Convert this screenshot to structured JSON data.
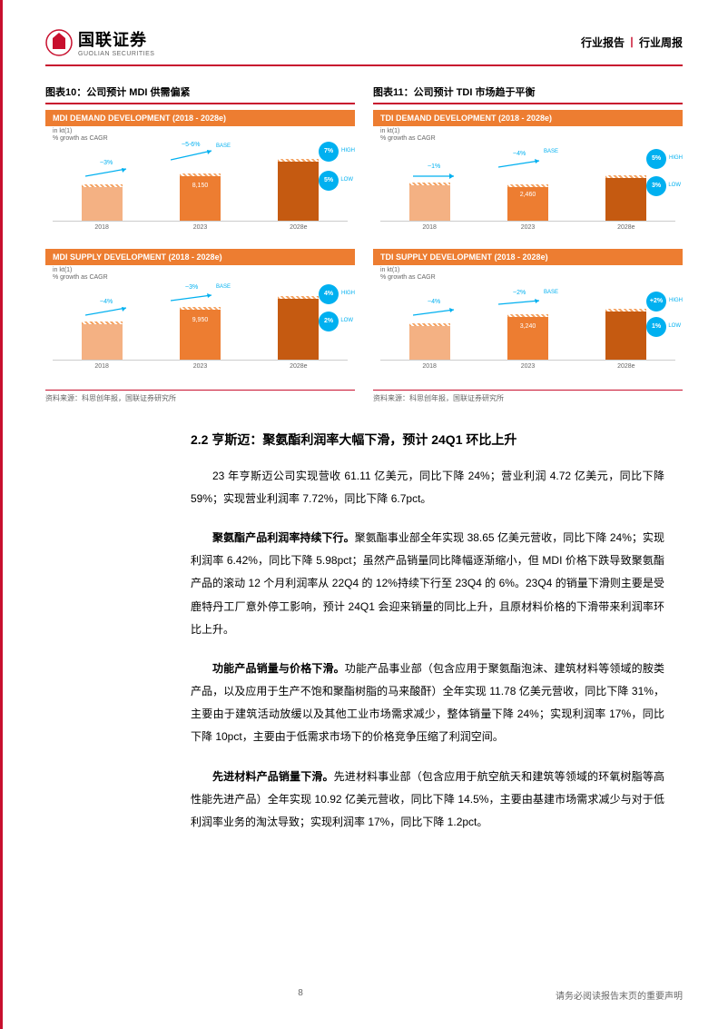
{
  "header": {
    "logo_cn": "国联证券",
    "logo_en": "GUOLIAN SECURITIES",
    "right_left": "行业报告",
    "right_right": "行业周报"
  },
  "fig10": {
    "title": "图表10：公司预计 MDI 供需偏紧",
    "demand": {
      "header": "MDI DEMAND DEVELOPMENT (2018 - 2028e)",
      "sub1": "in kt(1)",
      "sub2": "% growth as CAGR",
      "years": [
        "2018",
        "2023",
        "2028e"
      ],
      "heights": [
        40,
        52,
        68
      ],
      "colors": [
        "#f4b183",
        "#ed7d31",
        "#c55a11"
      ],
      "mid_value": "8,150",
      "g1": "~3%",
      "g2": "~5-6%",
      "base": "BASE",
      "high_badge": "7%",
      "high_label": "HIGH",
      "low_badge": "5%",
      "low_label": "LOW",
      "badge_color": "#00b0f0"
    },
    "supply": {
      "header": "MDI SUPPLY DEVELOPMENT (2018 - 2028e)",
      "sub1": "in kt(1)",
      "sub2": "% growth as CAGR",
      "years": [
        "2018",
        "2023",
        "2028e"
      ],
      "heights": [
        42,
        58,
        70
      ],
      "colors": [
        "#f4b183",
        "#ed7d31",
        "#c55a11"
      ],
      "mid_value": "9,950",
      "g1": "~4%",
      "g2": "~3%",
      "base": "BASE",
      "high_badge": "4%",
      "high_label": "HIGH",
      "low_badge": "2%",
      "low_label": "LOW",
      "badge_color": "#00b0f0"
    },
    "source": "资料来源：科思创年报，国联证券研究所"
  },
  "fig11": {
    "title": "图表11：公司预计 TDI 市场趋于平衡",
    "demand": {
      "header": "TDI DEMAND DEVELOPMENT (2018 - 2028e)",
      "sub1": "in kt(1)",
      "sub2": "% growth as CAGR",
      "years": [
        "2018",
        "2023",
        "2028e"
      ],
      "heights": [
        42,
        40,
        50
      ],
      "colors": [
        "#f4b183",
        "#ed7d31",
        "#c55a11"
      ],
      "mid_value": "2,460",
      "g1": "~1%",
      "g2": "~4%",
      "base": "BASE",
      "high_badge": "5%",
      "high_label": "HIGH",
      "low_badge": "3%",
      "low_label": "LOW",
      "badge_color": "#00b0f0"
    },
    "supply": {
      "header": "TDI SUPPLY DEVELOPMENT (2018 - 2028e)",
      "sub1": "in kt(1)",
      "sub2": "% growth as CAGR",
      "years": [
        "2018",
        "2023",
        "2028e"
      ],
      "heights": [
        40,
        50,
        56
      ],
      "colors": [
        "#f4b183",
        "#ed7d31",
        "#c55a11"
      ],
      "mid_value": "3,240",
      "g1": "~4%",
      "g2": "~2%",
      "base": "BASE",
      "high_badge": "+2%",
      "high_label": "HIGH",
      "low_badge": "1%",
      "low_label": "LOW",
      "badge_color": "#00b0f0"
    },
    "source": "资料来源：科思创年报，国联证券研究所"
  },
  "section": {
    "heading": "2.2 亨斯迈：聚氨酯利润率大幅下滑，预计 24Q1 环比上升",
    "p1": "23 年亨斯迈公司实现营收 61.11 亿美元，同比下降 24%；营业利润 4.72 亿美元，同比下降 59%；实现营业利润率 7.72%，同比下降 6.7pct。",
    "p2_bold": "聚氨酯产品利润率持续下行。",
    "p2": "聚氨酯事业部全年实现 38.65 亿美元营收，同比下降 24%；实现利润率 6.42%，同比下降 5.98pct；虽然产品销量同比降幅逐渐缩小，但 MDI 价格下跌导致聚氨酯产品的滚动 12 个月利润率从 22Q4 的 12%持续下行至 23Q4 的 6%。23Q4 的销量下滑则主要是受鹿特丹工厂意外停工影响，预计 24Q1 会迎来销量的同比上升，且原材料价格的下滑带来利润率环比上升。",
    "p3_bold": "功能产品销量与价格下滑。",
    "p3": "功能产品事业部（包含应用于聚氨酯泡沫、建筑材料等领域的胺类产品，以及应用于生产不饱和聚酯树脂的马来酸酐）全年实现 11.78 亿美元营收，同比下降 31%，主要由于建筑活动放缓以及其他工业市场需求减少，整体销量下降 24%；实现利润率 17%，同比下降 10pct，主要由于低需求市场下的价格竞争压缩了利润空间。",
    "p4_bold": "先进材料产品销量下滑。",
    "p4": "先进材料事业部（包含应用于航空航天和建筑等领域的环氧树脂等高性能先进产品）全年实现 10.92 亿美元营收，同比下降 14.5%，主要由基建市场需求减少与对于低利润率业务的淘汰导致；实现利润率 17%，同比下降 1.2pct。"
  },
  "footer": {
    "page": "8",
    "disclaimer": "请务必阅读报告末页的重要声明"
  }
}
